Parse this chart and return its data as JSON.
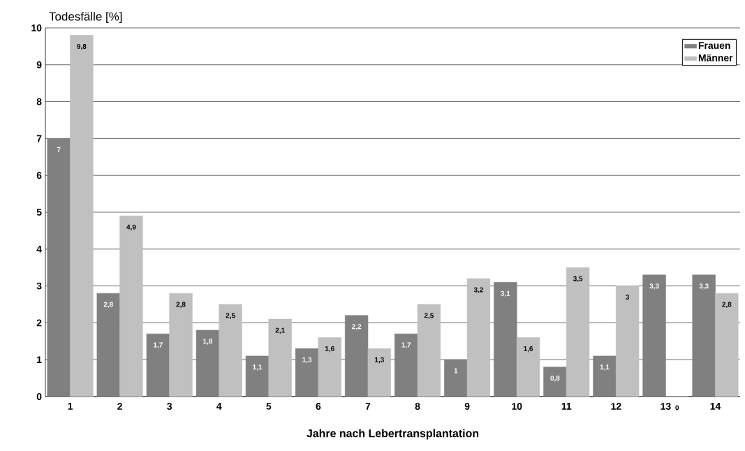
{
  "chart_data": {
    "type": "bar",
    "ylabel": "Todesfälle [%]",
    "xlabel": "Jahre nach Lebertransplantation",
    "categories": [
      "1",
      "2",
      "3",
      "4",
      "5",
      "6",
      "7",
      "8",
      "9",
      "10",
      "11",
      "12",
      "13",
      "14"
    ],
    "series": [
      {
        "name": "Frauen",
        "color": "#808080",
        "values": [
          7,
          2.8,
          1.7,
          1.8,
          1.1,
          1.3,
          2.2,
          1.7,
          1,
          3.1,
          0.8,
          1.1,
          3.3,
          3.3
        ],
        "value_labels": [
          "7",
          "2,8",
          "1,7",
          "1,8",
          "1,1",
          "1,3",
          "2,2",
          "1,7",
          "1",
          "3,1",
          "0,8",
          "1,1",
          "3,3",
          "3,3"
        ]
      },
      {
        "name": "Männer",
        "color": "#c0c0c0",
        "values": [
          9.8,
          4.9,
          2.8,
          2.5,
          2.1,
          1.6,
          1.3,
          2.5,
          3.2,
          1.6,
          3.5,
          3,
          0,
          2.8
        ],
        "value_labels": [
          "9,8",
          "4,9",
          "2,8",
          "2,5",
          "2,1",
          "1,6",
          "1,3",
          "2,5",
          "3,2",
          "1,6",
          "3,5",
          "3",
          "0",
          "2,8"
        ]
      }
    ],
    "ylim": [
      0,
      10
    ],
    "yticks": [
      0,
      1,
      2,
      3,
      4,
      5,
      6,
      7,
      8,
      9,
      10
    ],
    "grid": "y",
    "legend": "top right"
  }
}
